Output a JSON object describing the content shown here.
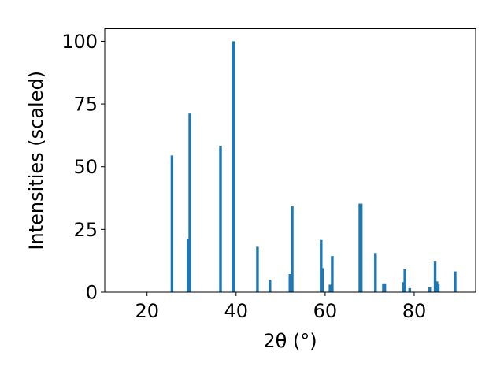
{
  "chart_data": {
    "type": "bar",
    "title": "",
    "xlabel": "2θ (°)",
    "ylabel": "Intensities (scaled)",
    "xlim": [
      10.5,
      93.8
    ],
    "ylim": [
      0,
      105
    ],
    "xticks": [
      20,
      40,
      60,
      80
    ],
    "yticks": [
      0,
      25,
      50,
      75,
      100
    ],
    "grid": false,
    "legend": "none",
    "bar_color": "#1f77b4",
    "x": [
      25.6,
      29.2,
      29.6,
      36.5,
      39.3,
      39.5,
      44.8,
      47.6,
      52.1,
      52.6,
      59.1,
      59.4,
      61.1,
      61.6,
      67.8,
      68.1,
      71.3,
      73.1,
      73.4,
      77.6,
      77.9,
      79.0,
      83.5,
      84.7,
      85.1,
      85.4,
      89.2
    ],
    "values": [
      54.5,
      21.2,
      71.2,
      58.3,
      100.0,
      100.0,
      18.1,
      4.8,
      7.2,
      34.2,
      20.8,
      9.6,
      3.0,
      14.4,
      35.3,
      35.3,
      15.6,
      3.5,
      3.5,
      4.0,
      9.1,
      1.6,
      1.9,
      12.2,
      4.3,
      3.1,
      8.3
    ]
  }
}
